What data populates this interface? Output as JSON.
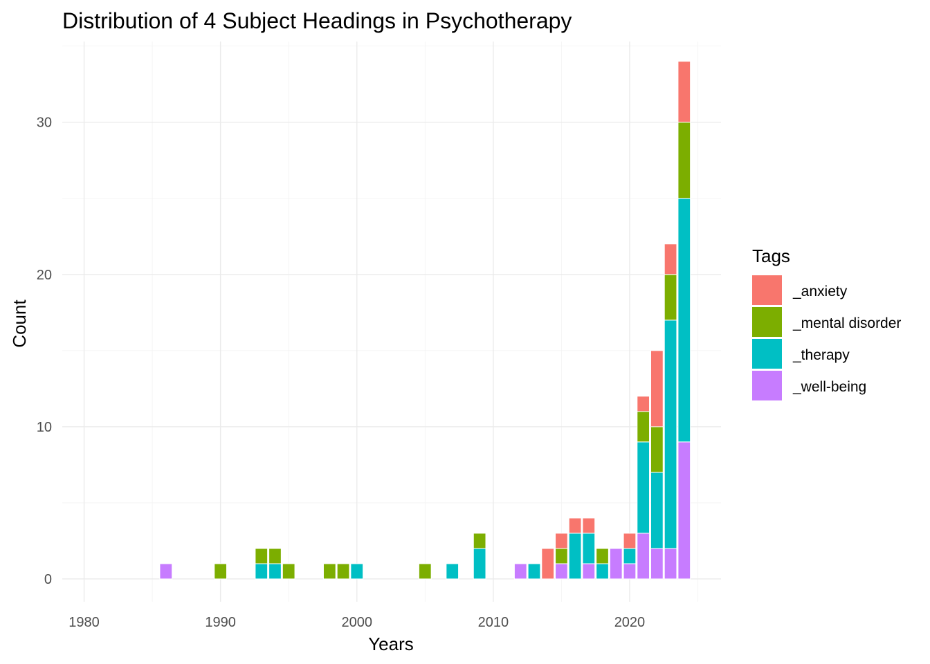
{
  "chart_data": {
    "type": "bar",
    "stacked": true,
    "title": "Distribution of 4 Subject Headings in Psychotherapy",
    "xlabel": "Years",
    "ylabel": "Count",
    "xlim": [
      1978.4,
      1026.7
    ],
    "ylim": [
      -1.5,
      35.3
    ],
    "xticks": [
      1980,
      1990,
      2000,
      2010,
      2020
    ],
    "yticks": [
      0,
      10,
      20,
      30
    ],
    "grid": true,
    "legend": {
      "title": "Tags",
      "position": "right"
    },
    "series": [
      {
        "name": "_anxiety",
        "color": "#F8766D",
        "points": [
          [
            2014,
            2
          ],
          [
            2015,
            1
          ],
          [
            2016,
            1
          ],
          [
            2017,
            1
          ],
          [
            2020,
            1
          ],
          [
            2021,
            1
          ],
          [
            2022,
            5
          ],
          [
            2023,
            2
          ],
          [
            2024,
            4
          ]
        ]
      },
      {
        "name": "_mental disorder",
        "color": "#7CAE00",
        "points": [
          [
            1990,
            1
          ],
          [
            1993,
            1
          ],
          [
            1994,
            1
          ],
          [
            1995,
            1
          ],
          [
            1998,
            1
          ],
          [
            1999,
            1
          ],
          [
            2005,
            1
          ],
          [
            2009,
            1
          ],
          [
            2015,
            1
          ],
          [
            2018,
            1
          ],
          [
            2021,
            2
          ],
          [
            2022,
            3
          ],
          [
            2023,
            3
          ],
          [
            2024,
            5
          ]
        ]
      },
      {
        "name": "_therapy",
        "color": "#00BFC4",
        "points": [
          [
            1993,
            1
          ],
          [
            1994,
            1
          ],
          [
            2000,
            1
          ],
          [
            2007,
            1
          ],
          [
            2009,
            2
          ],
          [
            2013,
            1
          ],
          [
            2016,
            3
          ],
          [
            2017,
            2
          ],
          [
            2018,
            1
          ],
          [
            2020,
            1
          ],
          [
            2021,
            6
          ],
          [
            2022,
            5
          ],
          [
            2023,
            15
          ],
          [
            2024,
            16
          ]
        ]
      },
      {
        "name": "_well-being",
        "color": "#C77CFF",
        "points": [
          [
            1986,
            1
          ],
          [
            2012,
            1
          ],
          [
            2015,
            1
          ],
          [
            2017,
            1
          ],
          [
            2019,
            2
          ],
          [
            2020,
            1
          ],
          [
            2021,
            3
          ],
          [
            2022,
            2
          ],
          [
            2023,
            2
          ],
          [
            2024,
            9
          ]
        ]
      }
    ]
  }
}
